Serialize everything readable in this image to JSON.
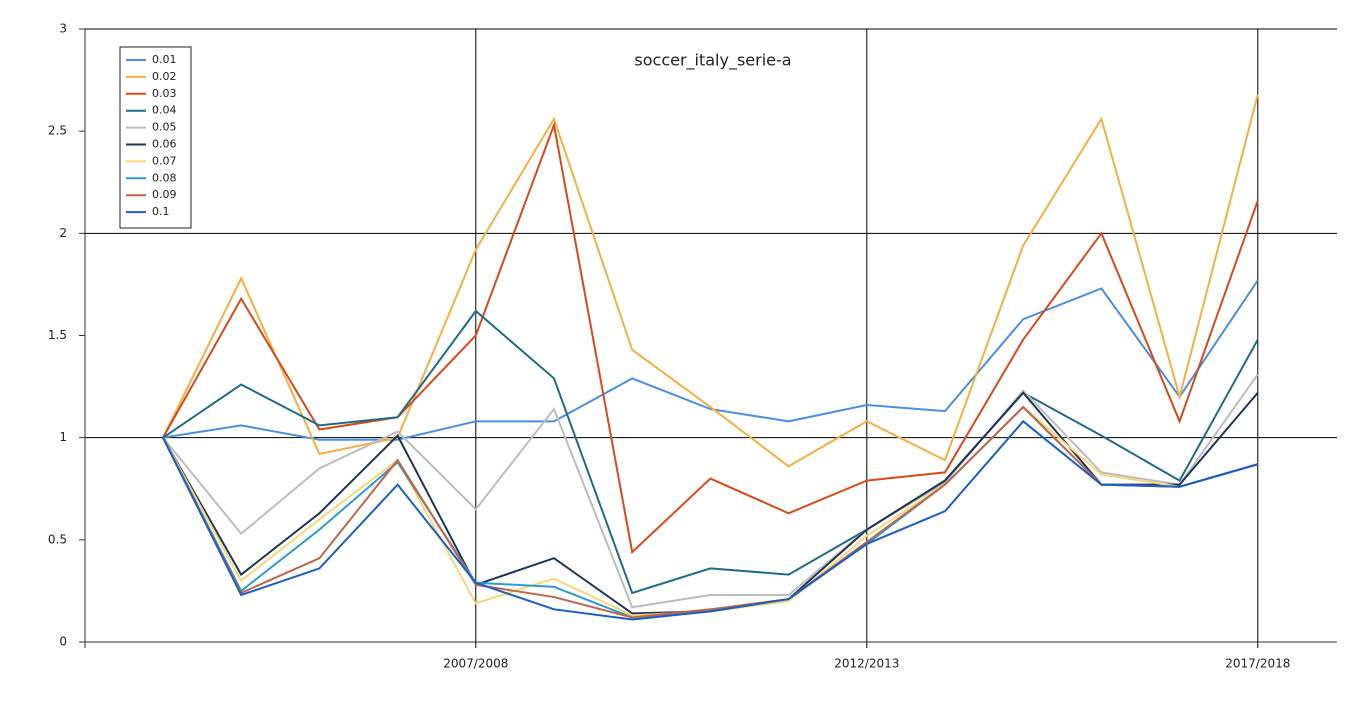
{
  "chart_data": {
    "type": "line",
    "title": "soccer_italy_serie-a",
    "categories": [
      null,
      null,
      null,
      null,
      "2007/2008",
      null,
      null,
      null,
      null,
      "2012/2013",
      null,
      null,
      null,
      null,
      "2017/2018"
    ],
    "ylim": [
      0,
      3
    ],
    "yticks": [
      0,
      0.5,
      1,
      1.5,
      2,
      2.5,
      3
    ],
    "grid": true,
    "legend": "upper left",
    "series": [
      {
        "name": "0.01",
        "color": "#4a8fe0",
        "values": [
          1,
          1.06,
          0.99,
          0.99,
          1.08,
          1.08,
          1.29,
          1.14,
          1.08,
          1.16,
          1.13,
          1.58,
          1.73,
          1.2,
          1.77
        ]
      },
      {
        "name": "0.02",
        "color": "#f4b040",
        "values": [
          1,
          1.78,
          0.92,
          1.0,
          1.92,
          2.56,
          1.43,
          1.15,
          0.86,
          1.08,
          0.89,
          1.94,
          2.56,
          1.2,
          2.68
        ]
      },
      {
        "name": "0.03",
        "color": "#d84a1b",
        "values": [
          1,
          1.68,
          1.04,
          1.1,
          1.5,
          2.53,
          0.44,
          0.8,
          0.63,
          0.79,
          0.83,
          1.48,
          2.0,
          1.08,
          2.16
        ]
      },
      {
        "name": "0.04",
        "color": "#1f6b8a",
        "values": [
          1,
          1.26,
          1.06,
          1.1,
          1.62,
          1.29,
          0.24,
          0.36,
          0.33,
          0.55,
          0.79,
          1.22,
          1.01,
          0.79,
          1.48
        ]
      },
      {
        "name": "0.05",
        "color": "#bdbdbd",
        "values": [
          1,
          0.53,
          0.85,
          1.03,
          0.65,
          1.14,
          0.17,
          0.23,
          0.23,
          0.55,
          0.78,
          1.23,
          0.83,
          0.77,
          1.31
        ]
      },
      {
        "name": "0.06",
        "color": "#1c3557",
        "values": [
          1,
          0.33,
          0.63,
          1.01,
          0.28,
          0.41,
          0.14,
          0.15,
          0.21,
          0.55,
          0.79,
          1.22,
          0.77,
          0.77,
          1.22
        ]
      },
      {
        "name": "0.07",
        "color": "#f7d778",
        "values": [
          1,
          0.3,
          0.6,
          0.89,
          0.19,
          0.31,
          0.13,
          0.15,
          0.2,
          0.52,
          0.77,
          1.15,
          0.82,
          0.76,
          0.87
        ]
      },
      {
        "name": "0.08",
        "color": "#2a9bd4",
        "values": [
          1,
          0.25,
          0.55,
          0.88,
          0.29,
          0.27,
          0.12,
          0.15,
          0.21,
          0.48,
          0.77,
          1.15,
          0.77,
          0.76,
          0.87
        ]
      },
      {
        "name": "0.09",
        "color": "#c0664a",
        "values": [
          1,
          0.24,
          0.41,
          0.89,
          0.28,
          0.22,
          0.12,
          0.16,
          0.21,
          0.49,
          0.77,
          1.15,
          0.77,
          0.76,
          0.87
        ]
      },
      {
        "name": "0.1",
        "color": "#1b5fc4",
        "values": [
          1,
          0.23,
          0.36,
          0.77,
          0.29,
          0.16,
          0.11,
          0.15,
          0.21,
          0.48,
          0.64,
          1.08,
          0.77,
          0.76,
          0.87
        ]
      }
    ]
  }
}
